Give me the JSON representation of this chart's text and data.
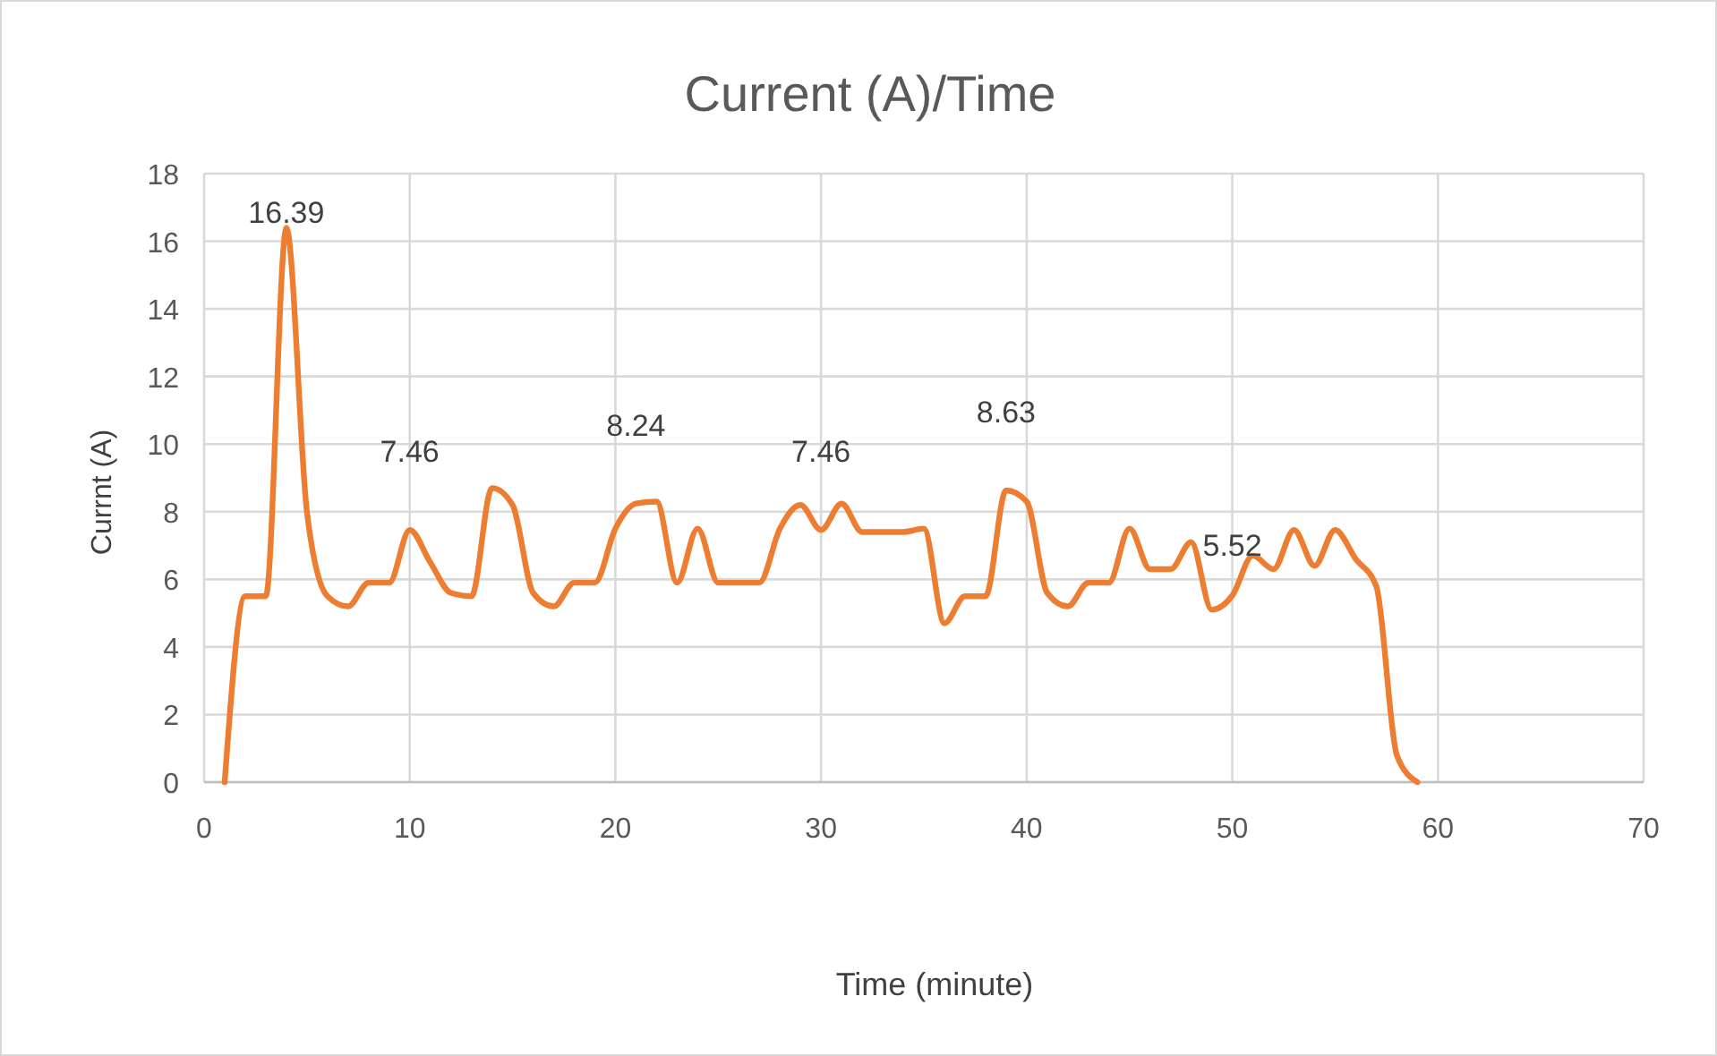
{
  "chart_data": {
    "type": "line",
    "title": "Current (A)/Time",
    "xlabel": "Time (minute)",
    "ylabel": "Currnt (A)",
    "x": [
      1,
      2,
      3,
      4,
      5,
      6,
      7,
      8,
      9,
      10,
      11,
      12,
      13,
      14,
      15,
      16,
      17,
      18,
      19,
      20,
      21,
      22,
      23,
      24,
      25,
      26,
      27,
      28,
      29,
      30,
      31,
      32,
      33,
      34,
      35,
      36,
      37,
      38,
      39,
      40,
      41,
      42,
      43,
      44,
      45,
      46,
      47,
      48,
      49,
      50,
      51,
      52,
      53,
      54,
      55,
      56,
      57,
      58,
      59
    ],
    "series": [
      {
        "color": "#ed7d31",
        "values": [
          0,
          5.5,
          5.5,
          16.39,
          8,
          5.5,
          5.2,
          5.9,
          5.9,
          7.46,
          6.5,
          5.6,
          5.5,
          8.7,
          8.2,
          5.6,
          5.2,
          5.9,
          5.9,
          7.5,
          8.24,
          8.3,
          5.9,
          7.5,
          5.9,
          5.9,
          5.9,
          7.5,
          8.2,
          7.46,
          8.24,
          7.4,
          7.4,
          7.4,
          7.5,
          4.7,
          5.5,
          5.5,
          8.63,
          8.3,
          5.6,
          5.2,
          5.9,
          5.9,
          7.5,
          6.3,
          6.3,
          7.1,
          5.1,
          5.52,
          6.7,
          6.3,
          7.46,
          6.4,
          7.46,
          6.6,
          5.8,
          0.8,
          0
        ],
        "value_labels": [
          null,
          null,
          null,
          "16.39",
          null,
          null,
          null,
          null,
          null,
          "7.46",
          null,
          null,
          null,
          null,
          null,
          null,
          null,
          null,
          null,
          null,
          "8.24",
          null,
          null,
          null,
          null,
          null,
          null,
          null,
          null,
          "7.46",
          null,
          null,
          null,
          null,
          null,
          null,
          null,
          null,
          "8.63",
          null,
          null,
          null,
          null,
          null,
          null,
          null,
          null,
          null,
          null,
          "5.52",
          null,
          null,
          null,
          null,
          null,
          null,
          null,
          null,
          null
        ]
      }
    ],
    "xlim": [
      0,
      70
    ],
    "xticks": [
      0,
      10,
      20,
      30,
      40,
      50,
      60,
      70
    ],
    "ylim": [
      0,
      18
    ],
    "yticks": [
      0,
      2,
      4,
      6,
      8,
      10,
      12,
      14,
      16,
      18
    ],
    "grid": true,
    "marker": "none",
    "line_style": "solid"
  }
}
